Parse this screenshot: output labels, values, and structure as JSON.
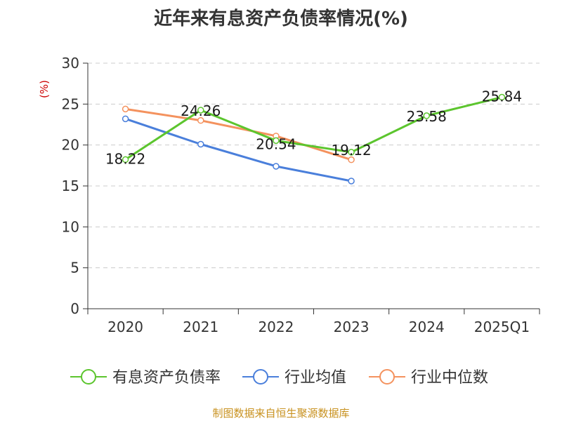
{
  "chart_data": {
    "type": "line",
    "title": "近年来有息资产负债率情况(%)",
    "ylabel": "(%)",
    "xlabel": "",
    "categories": [
      "2020",
      "2021",
      "2022",
      "2023",
      "2024",
      "2025Q1"
    ],
    "ylim": [
      0,
      30
    ],
    "yticks": [
      0,
      5,
      10,
      15,
      20,
      25,
      30
    ],
    "grid": true,
    "legend_position": "bottom",
    "series": [
      {
        "name": "有息资产负债率",
        "color": "#5cc52e",
        "values": [
          18.22,
          24.26,
          20.54,
          19.12,
          23.58,
          25.84
        ],
        "labels": [
          "18.22",
          "24.26",
          "20.54",
          "19.12",
          "23.58",
          "25.84"
        ]
      },
      {
        "name": "行业均值",
        "color": "#4a7fdb",
        "values": [
          23.2,
          20.1,
          17.4,
          15.6,
          null,
          null
        ]
      },
      {
        "name": "行业中位数",
        "color": "#f4925e",
        "values": [
          24.4,
          23.0,
          21.1,
          18.2,
          null,
          null
        ]
      }
    ],
    "source": "制图数据来自恒生聚源数据库"
  },
  "colors": {
    "axis": "#333333",
    "grid": "#cccccc",
    "ylabel": "#cc0000"
  }
}
